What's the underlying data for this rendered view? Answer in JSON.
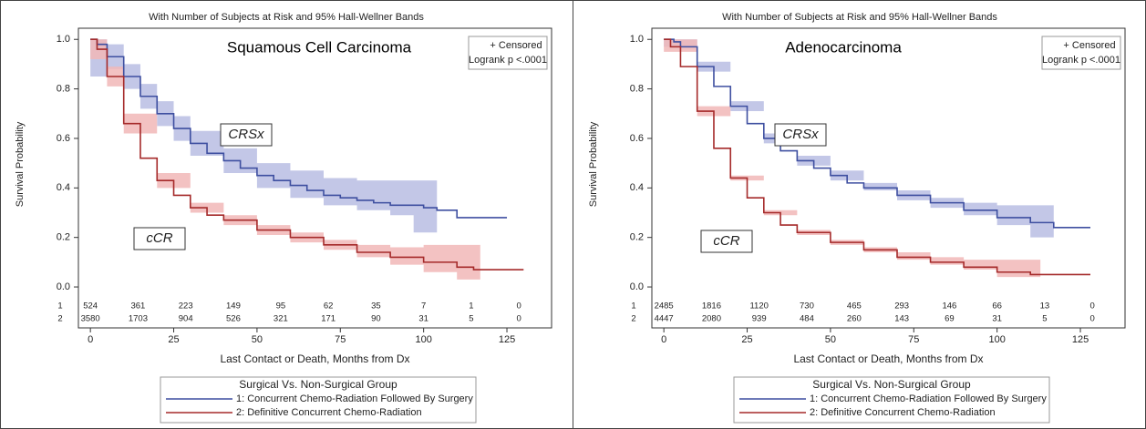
{
  "chart_data": [
    {
      "type": "line",
      "step": true,
      "title": "With Number of Subjects at Risk and 95% Hall-Wellner Bands",
      "subtitle": "Squamous Cell Carcinoma",
      "censored_note": "+ Censored",
      "logrank": "Logrank p <.0001",
      "x_label": "Last Contact or Death, Months from Dx",
      "y_label": "Survival Probability",
      "xlim": [
        -3.6,
        138.4
      ],
      "xticks": [
        0,
        25,
        50,
        75,
        100,
        125
      ],
      "ylim": [
        -0.055,
        1.045
      ],
      "yticks": [
        {
          "value": 0,
          "label": "0.0"
        },
        0.2,
        0.4,
        0.6,
        0.8,
        {
          "value": 1,
          "label": "1.0"
        }
      ],
      "risk_x": [
        0,
        14.3,
        28.6,
        42.9,
        57.1,
        71.4,
        85.7,
        100,
        114.3,
        128.6
      ],
      "legend_title": "Surgical Vs. Non-Surgical Group",
      "series": [
        {
          "name": "1: Concurrent Chemo-Radiation Followed By Surgery",
          "label": "CRSx",
          "risk_label": "1",
          "color": "#3e4fa0",
          "band_color": "#b9bde3",
          "x": [
            0,
            2,
            5,
            10,
            15,
            20,
            25,
            30,
            35,
            40,
            45,
            50,
            55,
            60,
            65,
            70,
            75,
            80,
            85,
            90,
            95,
            100,
            104,
            110,
            125
          ],
          "values": [
            1.0,
            0.98,
            0.93,
            0.85,
            0.77,
            0.7,
            0.64,
            0.58,
            0.54,
            0.51,
            0.48,
            0.45,
            0.43,
            0.41,
            0.39,
            0.37,
            0.36,
            0.35,
            0.34,
            0.33,
            0.33,
            0.32,
            0.31,
            0.28,
            0.28
          ],
          "band_x": [
            0,
            5,
            10,
            15,
            20,
            25,
            30,
            40,
            50,
            60,
            70,
            80,
            90,
            97,
            104
          ],
          "band_lower": [
            0.85,
            0.88,
            0.8,
            0.72,
            0.65,
            0.59,
            0.53,
            0.46,
            0.4,
            0.36,
            0.33,
            0.31,
            0.29,
            0.22,
            0.22
          ],
          "band_upper": [
            1.0,
            0.98,
            0.9,
            0.82,
            0.75,
            0.69,
            0.63,
            0.56,
            0.5,
            0.47,
            0.44,
            0.43,
            0.43,
            0.43,
            0.43
          ],
          "at_risk": [
            524,
            361,
            223,
            149,
            95,
            62,
            35,
            7,
            1,
            0
          ]
        },
        {
          "name": "2: Definitive Concurrent Chemo-Radiation",
          "label": "cCR",
          "risk_label": "2",
          "color": "#a52a2a",
          "band_color": "#f1b7b7",
          "x": [
            0,
            2,
            5,
            10,
            15,
            20,
            25,
            30,
            35,
            40,
            50,
            60,
            70,
            80,
            90,
            100,
            110,
            115,
            130
          ],
          "values": [
            1.0,
            0.96,
            0.85,
            0.66,
            0.52,
            0.43,
            0.37,
            0.32,
            0.29,
            0.27,
            0.23,
            0.2,
            0.17,
            0.14,
            0.12,
            0.1,
            0.08,
            0.07,
            0.07
          ],
          "band_x": [
            0,
            5,
            10,
            20,
            30,
            40,
            50,
            60,
            70,
            80,
            90,
            100,
            110,
            117
          ],
          "band_lower": [
            0.92,
            0.81,
            0.62,
            0.4,
            0.3,
            0.25,
            0.21,
            0.18,
            0.15,
            0.12,
            0.09,
            0.06,
            0.03,
            0.0
          ],
          "band_upper": [
            1.0,
            0.89,
            0.7,
            0.46,
            0.34,
            0.29,
            0.25,
            0.22,
            0.19,
            0.17,
            0.16,
            0.17,
            0.17,
            0.17
          ],
          "at_risk": [
            3580,
            1703,
            904,
            526,
            321,
            171,
            90,
            31,
            5,
            0
          ]
        }
      ]
    },
    {
      "type": "line",
      "step": true,
      "title": "With Number of Subjects at Risk and 95% Hall-Wellner Bands",
      "subtitle": "Adenocarcinoma",
      "censored_note": "+ Censored",
      "logrank": "Logrank p <.0001",
      "x_label": "Last Contact or Death, Months from Dx",
      "y_label": "Survival Probability",
      "xlim": [
        -3.6,
        138.4
      ],
      "xticks": [
        0,
        25,
        50,
        75,
        100,
        125
      ],
      "ylim": [
        -0.055,
        1.045
      ],
      "yticks": [
        {
          "value": 0,
          "label": "0.0"
        },
        0.2,
        0.4,
        0.6,
        0.8,
        {
          "value": 1,
          "label": "1.0"
        }
      ],
      "risk_x": [
        0,
        14.3,
        28.6,
        42.9,
        57.1,
        71.4,
        85.7,
        100,
        114.3,
        128.6
      ],
      "legend_title": "Surgical Vs. Non-Surgical Group",
      "series": [
        {
          "name": "1: Concurrent Chemo-Radiation Followed By Surgery",
          "label": "CRSx",
          "risk_label": "1",
          "color": "#3e4fa0",
          "band_color": "#b9bde3",
          "x": [
            0,
            3,
            5,
            10,
            15,
            20,
            25,
            30,
            35,
            40,
            45,
            50,
            55,
            60,
            70,
            80,
            90,
            100,
            110,
            117,
            128
          ],
          "values": [
            1.0,
            0.99,
            0.97,
            0.89,
            0.81,
            0.73,
            0.66,
            0.6,
            0.55,
            0.51,
            0.48,
            0.45,
            0.42,
            0.4,
            0.37,
            0.34,
            0.31,
            0.28,
            0.26,
            0.24,
            0.24
          ],
          "band_x": [
            0,
            10,
            20,
            30,
            40,
            50,
            60,
            70,
            80,
            90,
            100,
            110,
            117
          ],
          "band_lower": [
            0.97,
            0.87,
            0.71,
            0.58,
            0.49,
            0.43,
            0.39,
            0.35,
            0.32,
            0.29,
            0.25,
            0.2,
            0.18
          ],
          "band_upper": [
            1.0,
            0.91,
            0.75,
            0.62,
            0.53,
            0.47,
            0.42,
            0.39,
            0.36,
            0.34,
            0.33,
            0.33,
            0.33
          ],
          "at_risk": [
            2485,
            1816,
            1120,
            730,
            465,
            293,
            146,
            66,
            13,
            0
          ]
        },
        {
          "name": "2: Definitive Concurrent Chemo-Radiation",
          "label": "cCR",
          "risk_label": "2",
          "color": "#a52a2a",
          "band_color": "#f1b7b7",
          "x": [
            0,
            2,
            5,
            10,
            15,
            20,
            25,
            30,
            35,
            40,
            50,
            60,
            70,
            80,
            90,
            100,
            110,
            128
          ],
          "values": [
            1.0,
            0.97,
            0.89,
            0.71,
            0.56,
            0.44,
            0.36,
            0.3,
            0.25,
            0.22,
            0.18,
            0.15,
            0.12,
            0.1,
            0.08,
            0.06,
            0.05,
            0.05
          ],
          "band_x": [
            0,
            10,
            20,
            30,
            40,
            50,
            60,
            70,
            80,
            90,
            100,
            113
          ],
          "band_lower": [
            0.95,
            0.69,
            0.43,
            0.29,
            0.21,
            0.17,
            0.14,
            0.11,
            0.09,
            0.07,
            0.04,
            0.01
          ],
          "band_upper": [
            1.0,
            0.73,
            0.45,
            0.31,
            0.23,
            0.19,
            0.16,
            0.14,
            0.12,
            0.11,
            0.11,
            0.11
          ],
          "at_risk": [
            4447,
            2080,
            939,
            484,
            260,
            143,
            69,
            31,
            5,
            0
          ]
        }
      ]
    }
  ]
}
